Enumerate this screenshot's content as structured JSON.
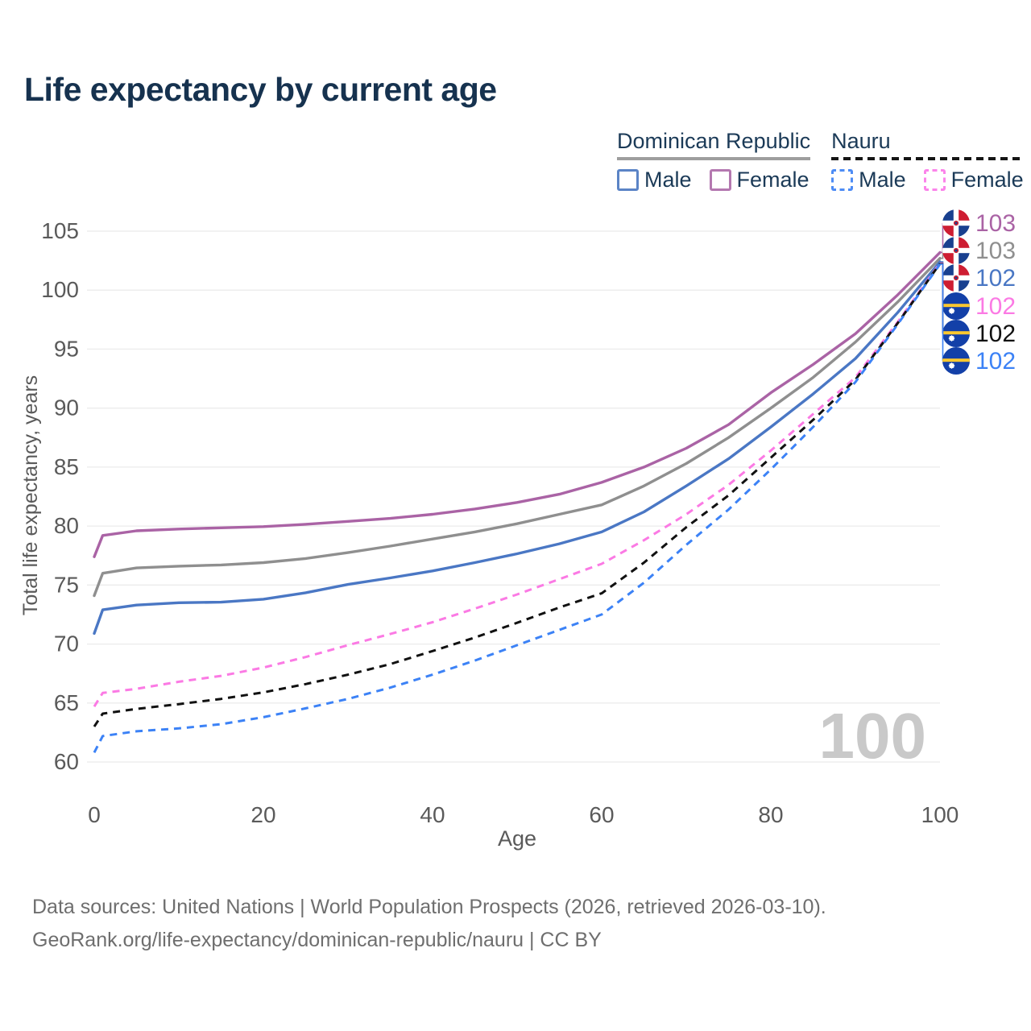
{
  "title": "Life expectancy by current age",
  "legend": {
    "groups": [
      {
        "label": "Dominican Republic",
        "line_style": "solid",
        "underline_color": "#9e9e9e",
        "items": [
          {
            "label": "Male",
            "color": "#5b84c6",
            "dashed": false
          },
          {
            "label": "Female",
            "color": "#b478b0",
            "dashed": false
          }
        ]
      },
      {
        "label": "Nauru",
        "line_style": "dashed",
        "underline_color": "#151515",
        "items": [
          {
            "label": "Male",
            "color": "#4d8cf5",
            "dashed": true
          },
          {
            "label": "Female",
            "color": "#fb84ea",
            "dashed": true
          }
        ]
      }
    ]
  },
  "chart_data": {
    "type": "line",
    "title": "Life expectancy by current age",
    "xlabel": "Age",
    "ylabel": "Total life expectancy, years",
    "xlim": [
      0,
      100
    ],
    "ylim": [
      60,
      105
    ],
    "x_ticks": [
      0,
      20,
      40,
      60,
      80,
      100
    ],
    "y_ticks": [
      60,
      65,
      70,
      75,
      80,
      85,
      90,
      95,
      100,
      105
    ],
    "grid": "horizontal",
    "legend_position": "top-right",
    "watermark": "100",
    "x": [
      0,
      1,
      5,
      10,
      15,
      20,
      25,
      30,
      35,
      40,
      45,
      50,
      55,
      60,
      65,
      70,
      75,
      80,
      85,
      90,
      95,
      100
    ],
    "series": [
      {
        "id": "dr-female",
        "name": "Dominican Republic Female",
        "country": "Dominican Republic",
        "sex": "Female",
        "color": "#aa63a5",
        "dashed": false,
        "flag": "dr",
        "end_label": "103",
        "values": [
          77.4,
          79.2,
          79.6,
          79.75,
          79.85,
          79.95,
          80.15,
          80.4,
          80.65,
          81.0,
          81.45,
          82.0,
          82.7,
          83.7,
          85.0,
          86.6,
          88.6,
          91.3,
          93.7,
          96.3,
          99.6,
          103.2
        ]
      },
      {
        "id": "dr-both",
        "name": "Dominican Republic Both sexes",
        "country": "Dominican Republic",
        "sex": "Both",
        "color": "#8f8f8f",
        "dashed": false,
        "flag": "dr",
        "end_label": "103",
        "values": [
          74.1,
          76.0,
          76.45,
          76.6,
          76.7,
          76.9,
          77.25,
          77.75,
          78.3,
          78.9,
          79.5,
          80.2,
          81.0,
          81.8,
          83.4,
          85.3,
          87.5,
          90.0,
          92.6,
          95.6,
          99.0,
          102.7
        ]
      },
      {
        "id": "dr-male",
        "name": "Dominican Republic Male",
        "country": "Dominican Republic",
        "sex": "Male",
        "color": "#4a77c4",
        "dashed": false,
        "flag": "dr",
        "end_label": "102",
        "values": [
          70.9,
          72.9,
          73.3,
          73.5,
          73.55,
          73.8,
          74.35,
          75.05,
          75.6,
          76.2,
          76.9,
          77.65,
          78.5,
          79.5,
          81.2,
          83.4,
          85.7,
          88.4,
          91.2,
          94.2,
          98.1,
          102.4
        ]
      },
      {
        "id": "nr-female",
        "name": "Nauru Female",
        "country": "Nauru",
        "sex": "Female",
        "color": "#fb7ae4",
        "dashed": true,
        "flag": "nr",
        "end_label": "102",
        "values": [
          64.7,
          65.85,
          66.2,
          66.8,
          67.3,
          68.0,
          68.9,
          69.9,
          70.85,
          71.85,
          73.0,
          74.2,
          75.5,
          76.8,
          78.8,
          81.0,
          83.5,
          86.4,
          89.5,
          92.6,
          97.3,
          102.3
        ]
      },
      {
        "id": "nr-both",
        "name": "Nauru Both sexes",
        "country": "Nauru",
        "sex": "Both",
        "color": "#111111",
        "dashed": true,
        "flag": "nr",
        "end_label": "102",
        "values": [
          63.0,
          64.1,
          64.5,
          64.9,
          65.35,
          65.9,
          66.6,
          67.4,
          68.3,
          69.4,
          70.55,
          71.8,
          73.1,
          74.3,
          76.9,
          79.9,
          82.6,
          85.8,
          89.0,
          92.4,
          97.2,
          102.25
        ]
      },
      {
        "id": "nr-male",
        "name": "Nauru Male",
        "country": "Nauru",
        "sex": "Male",
        "color": "#3c82f6",
        "dashed": true,
        "flag": "nr",
        "end_label": "102",
        "values": [
          60.8,
          62.2,
          62.6,
          62.85,
          63.2,
          63.8,
          64.55,
          65.35,
          66.3,
          67.4,
          68.6,
          69.9,
          71.2,
          72.5,
          75.2,
          78.4,
          81.4,
          84.8,
          88.4,
          92.2,
          97.1,
          102.2
        ]
      }
    ]
  },
  "footer": {
    "line1": "Data sources: United Nations | World Population Prospects (2026, retrieved 2026-03-10).",
    "line2": "GeoRank.org/life-expectancy/dominican-republic/nauru | CC BY"
  }
}
